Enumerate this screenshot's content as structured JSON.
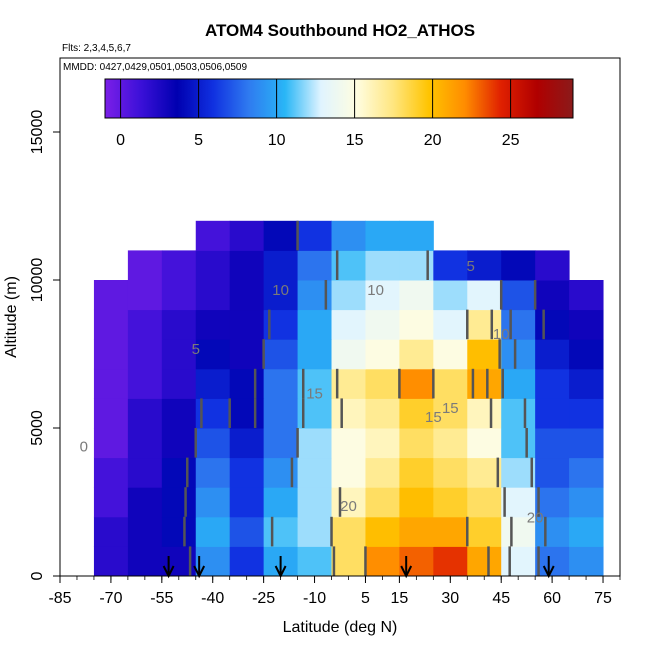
{
  "chart_data": {
    "type": "heatmap",
    "title": "ATOM4 Southbound HO2_ATHOS",
    "annotations": [
      "Flts: 2,3,4,5,6,7",
      "MMDD: 0427,0429,0501,0503,0506,0509"
    ],
    "xlabel": "Latitude (deg N)",
    "ylabel": "Altitude (m)",
    "xlim": [
      -85,
      80
    ],
    "ylim": [
      0,
      17500
    ],
    "x_tick_labels": [
      "-85",
      "-70",
      "-55",
      "-40",
      "-25",
      "-10",
      "5",
      "15",
      "30",
      "45",
      "60",
      "75"
    ],
    "y_tick_labels": [
      "0",
      "5000",
      "10000",
      "15000"
    ],
    "colorbar": {
      "range": [
        -1,
        29
      ],
      "tick_labels": [
        "0",
        "5",
        "10",
        "15",
        "20",
        "25"
      ],
      "colors": [
        "#7b1fe8",
        "#3b10d8",
        "#0000b0",
        "#1030e0",
        "#2f7bf0",
        "#29b6f6",
        "#e0f4ff",
        "#fffde0",
        "#ffe680",
        "#ffc400",
        "#ff8c00",
        "#e02000",
        "#b00000",
        "#8b1a1a"
      ]
    },
    "contour_labels": [
      "0",
      "5",
      "10",
      "15",
      "20",
      "5",
      "10",
      "15",
      "20",
      "10",
      "15"
    ],
    "flight_markers_lat": [
      -53,
      -44,
      -20,
      17,
      59
    ],
    "latitude_bins": [
      -70,
      -60,
      -50,
      -40,
      -30,
      -20,
      -10,
      0,
      10,
      20,
      30,
      40,
      50,
      60,
      70
    ],
    "altitude_bins": [
      500,
      1500,
      2500,
      3500,
      4500,
      5500,
      6500,
      7500,
      8500,
      9500,
      10500,
      11500
    ],
    "values": [
      [
        2,
        3,
        3,
        9,
        6,
        10,
        11,
        18,
        22,
        23,
        24,
        21,
        13,
        8,
        9
      ],
      [
        2,
        3,
        4,
        10,
        7,
        11,
        12,
        18,
        20,
        21,
        21,
        19,
        14,
        9,
        10
      ],
      [
        1,
        3,
        4,
        9,
        6,
        10,
        12,
        16,
        18,
        20,
        19,
        18,
        13,
        8,
        9
      ],
      [
        1,
        2,
        4,
        8,
        6,
        9,
        12,
        15,
        17,
        19,
        18,
        17,
        12,
        7,
        8
      ],
      [
        0,
        2,
        3,
        7,
        5,
        8,
        12,
        15,
        16,
        18,
        17,
        15,
        11,
        7,
        7
      ],
      [
        0,
        2,
        3,
        6,
        4,
        8,
        11,
        16,
        17,
        19,
        18,
        16,
        11,
        6,
        6
      ],
      [
        0,
        1,
        2,
        5,
        4,
        8,
        11,
        17,
        18,
        22,
        18,
        21,
        10,
        6,
        5
      ],
      [
        0,
        1,
        2,
        4,
        3,
        7,
        10,
        14,
        15,
        17,
        15,
        20,
        9,
        5,
        4
      ],
      [
        0,
        1,
        2,
        3,
        3,
        6,
        10,
        13,
        14,
        15,
        13,
        17,
        8,
        4,
        3
      ],
      [
        0,
        0,
        1,
        2,
        3,
        5,
        9,
        12,
        13,
        14,
        12,
        13,
        7,
        3,
        2
      ],
      [
        null,
        0,
        1,
        2,
        3,
        5,
        8,
        11,
        12,
        12,
        6,
        5,
        4,
        2,
        null
      ],
      [
        null,
        null,
        null,
        1,
        2,
        4,
        6,
        9,
        10,
        10,
        null,
        null,
        null,
        null,
        null
      ]
    ]
  }
}
